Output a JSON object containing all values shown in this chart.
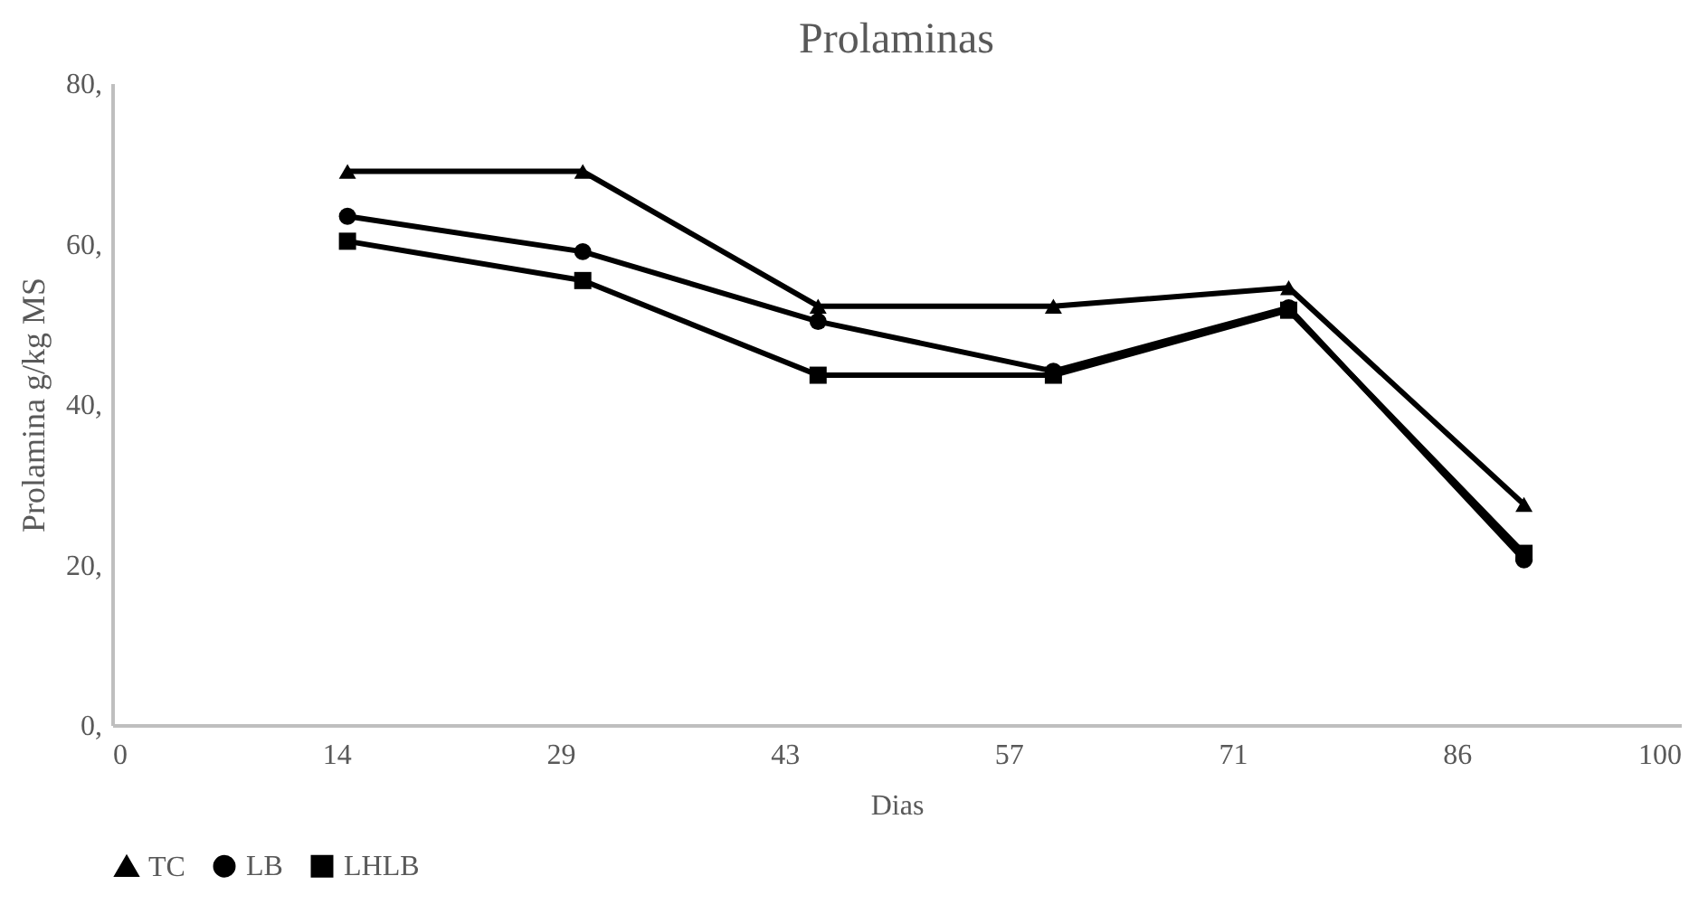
{
  "chart_data": {
    "type": "line",
    "title": "Prolaminas",
    "xlabel": "Dias",
    "ylabel": "Prolamina g/kg MS",
    "x": [
      15,
      30,
      45,
      60,
      75,
      90
    ],
    "series": [
      {
        "name": "TC",
        "color": "#000000",
        "marker": "triangle",
        "values": [
          69.0,
          69.0,
          52.2,
          52.2,
          54.5,
          27.5
        ]
      },
      {
        "name": "LB",
        "color": "#000000",
        "marker": "circle",
        "values": [
          63.4,
          59.0,
          50.3,
          44.1,
          52.0,
          20.6
        ]
      },
      {
        "name": "LHLB",
        "color": "#000000",
        "marker": "square",
        "values": [
          60.3,
          55.4,
          43.6,
          43.6,
          51.7,
          21.4
        ]
      }
    ],
    "xlim": [
      0,
      100
    ],
    "xticks": [
      0,
      {
        "value": 14.2857,
        "label": "14"
      },
      {
        "value": 28.5714,
        "label": "29"
      },
      {
        "value": 42.8571,
        "label": "43"
      },
      {
        "value": 57.1429,
        "label": "57"
      },
      {
        "value": 71.4286,
        "label": "71"
      },
      {
        "value": 85.7143,
        "label": "86"
      },
      100
    ],
    "ylim": [
      0,
      80
    ],
    "yticks": [
      {
        "value": 0,
        "label": "0,"
      },
      {
        "value": 20,
        "label": "20,"
      },
      {
        "value": 40,
        "label": "40,"
      },
      {
        "value": 60,
        "label": "60,"
      },
      {
        "value": 80,
        "label": "80,"
      }
    ],
    "grid": false,
    "legend": "bottom",
    "line_style": "solid"
  }
}
